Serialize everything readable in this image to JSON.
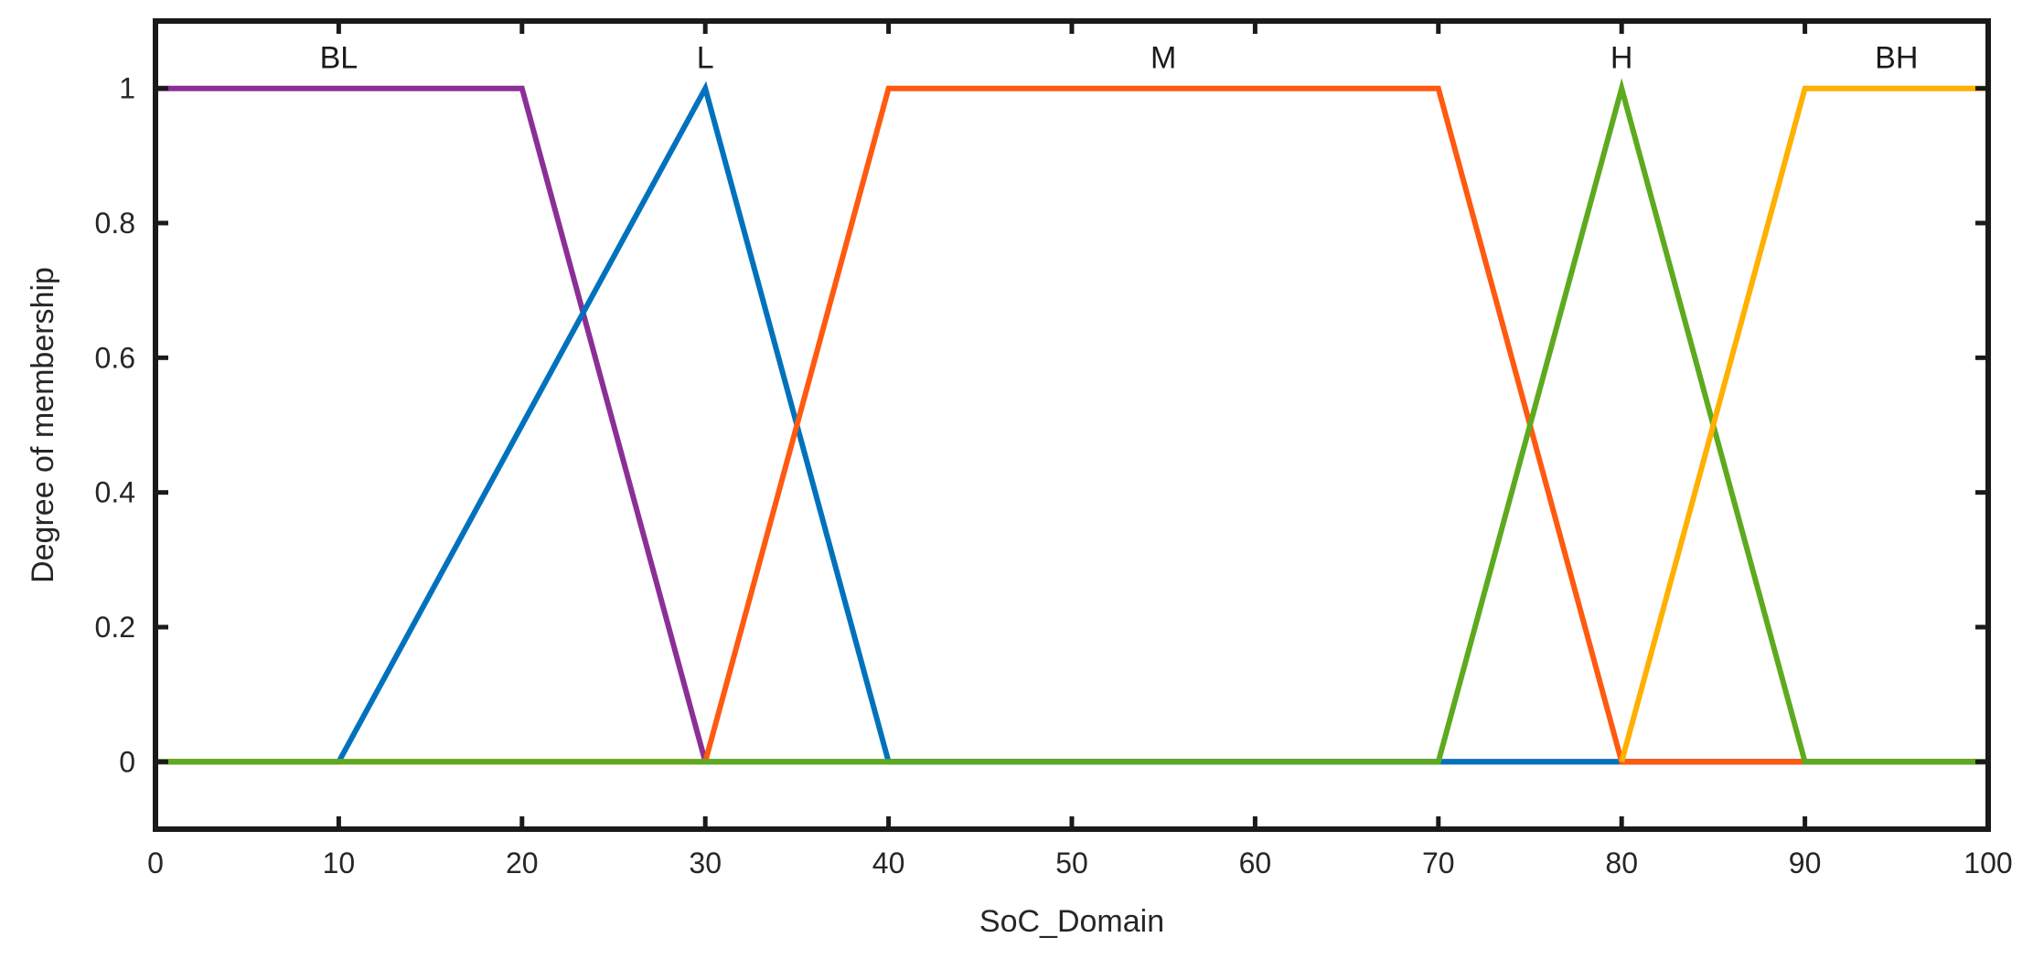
{
  "chart_data": {
    "type": "line",
    "xlabel": "SoC_Domain",
    "ylabel": "Degree of membership",
    "xlim": [
      0,
      100
    ],
    "ylim": [
      -0.1,
      1.1
    ],
    "xticks": [
      0,
      10,
      20,
      30,
      40,
      50,
      60,
      70,
      80,
      90,
      100
    ],
    "xtick_labels": [
      "0",
      "10",
      "20",
      "30",
      "40",
      "50",
      "60",
      "70",
      "80",
      "90",
      "100"
    ],
    "yticks": [
      0,
      0.2,
      0.4,
      0.6,
      0.8,
      1
    ],
    "ytick_labels": [
      "0",
      "0.2",
      "0.4",
      "0.6",
      "0.8",
      "1"
    ],
    "grid": false,
    "series": [
      {
        "name": "BL",
        "color": "#8B2F97",
        "x": [
          0,
          20,
          30,
          100
        ],
        "y": [
          1,
          1,
          0,
          0
        ],
        "label_x": 10
      },
      {
        "name": "L",
        "color": "#0072BD",
        "x": [
          0,
          10,
          30,
          40,
          100
        ],
        "y": [
          0,
          0,
          1,
          0,
          0
        ],
        "label_x": 30
      },
      {
        "name": "M",
        "color": "#FF5A10",
        "x": [
          0,
          30,
          40,
          70,
          80,
          100
        ],
        "y": [
          0,
          0,
          1,
          1,
          0,
          0
        ],
        "label_x": 55
      },
      {
        "name": "H",
        "color": "#5DAA1F",
        "x": [
          0,
          70,
          80,
          90,
          100
        ],
        "y": [
          0,
          0,
          1,
          0,
          0
        ],
        "label_x": 80
      },
      {
        "name": "BH",
        "color": "#FFB000",
        "x": [
          80,
          90,
          100
        ],
        "y": [
          0,
          1,
          1
        ],
        "label_x": 95
      }
    ]
  }
}
